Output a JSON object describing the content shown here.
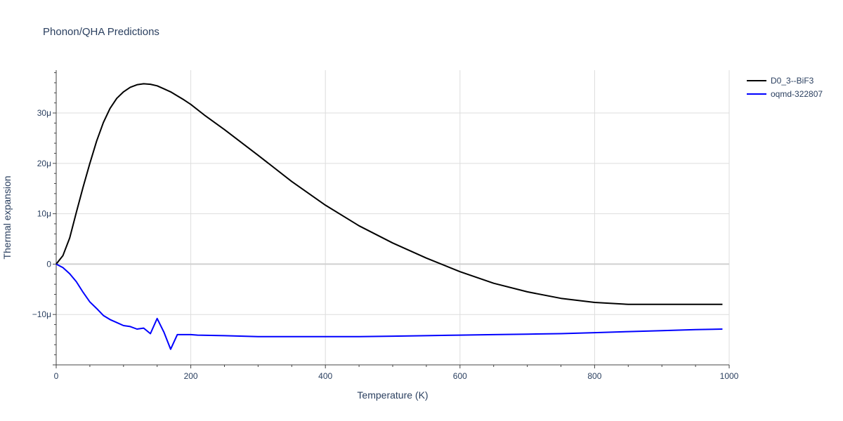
{
  "chart_data": {
    "type": "line",
    "title": "Phonon/QHA Predictions",
    "xlabel": "Temperature (K)",
    "ylabel": "Thermal expansion",
    "xlim": [
      0,
      1000
    ],
    "ylim": [
      -20,
      38.5
    ],
    "grid": true,
    "legend_position": "top-right",
    "x_ticks": [
      {
        "value": 0,
        "label": "0"
      },
      {
        "value": 200,
        "label": "200"
      },
      {
        "value": 400,
        "label": "400"
      },
      {
        "value": 600,
        "label": "600"
      },
      {
        "value": 800,
        "label": "800"
      },
      {
        "value": 1000,
        "label": "1000"
      }
    ],
    "y_ticks": [
      {
        "value": -10,
        "label": "−10μ"
      },
      {
        "value": 0,
        "label": "0"
      },
      {
        "value": 10,
        "label": "10μ"
      },
      {
        "value": 20,
        "label": "20μ"
      },
      {
        "value": 30,
        "label": "30μ"
      }
    ],
    "y_unit_note": "values in units of 1e-6 (μ)",
    "series": [
      {
        "name": "D0_3--BiF3",
        "color": "#000000",
        "x": [
          0,
          10,
          20,
          30,
          40,
          50,
          60,
          70,
          80,
          90,
          100,
          110,
          120,
          130,
          140,
          150,
          160,
          170,
          180,
          190,
          200,
          220,
          250,
          300,
          350,
          400,
          450,
          500,
          550,
          600,
          650,
          700,
          750,
          800,
          850,
          900,
          950,
          990
        ],
        "y": [
          0,
          1.7,
          5.2,
          10.3,
          15.3,
          20.0,
          24.4,
          28.1,
          30.9,
          32.9,
          34.2,
          35.1,
          35.6,
          35.8,
          35.7,
          35.4,
          34.8,
          34.2,
          33.4,
          32.6,
          31.7,
          29.6,
          26.7,
          21.6,
          16.4,
          11.7,
          7.6,
          4.2,
          1.2,
          -1.5,
          -3.8,
          -5.5,
          -6.8,
          -7.6,
          -8.0,
          -8.0,
          -8.0,
          -8.0
        ]
      },
      {
        "name": "oqmd-322807",
        "color": "#0000ff",
        "x": [
          0,
          10,
          20,
          30,
          40,
          50,
          60,
          70,
          80,
          90,
          100,
          110,
          120,
          130,
          140,
          150,
          160,
          170,
          180,
          190,
          200,
          210,
          250,
          300,
          350,
          400,
          450,
          500,
          550,
          600,
          650,
          700,
          750,
          800,
          850,
          900,
          950,
          990
        ],
        "y": [
          0,
          -0.7,
          -1.9,
          -3.5,
          -5.6,
          -7.5,
          -8.8,
          -10.2,
          -11.0,
          -11.6,
          -12.2,
          -12.4,
          -12.9,
          -12.7,
          -13.8,
          -10.8,
          -13.5,
          -16.9,
          -14.0,
          -14.0,
          -14.0,
          -14.1,
          -14.2,
          -14.4,
          -14.4,
          -14.4,
          -14.4,
          -14.3,
          -14.2,
          -14.1,
          -14.0,
          -13.9,
          -13.8,
          -13.6,
          -13.4,
          -13.2,
          -13.0,
          -12.9
        ]
      }
    ]
  }
}
